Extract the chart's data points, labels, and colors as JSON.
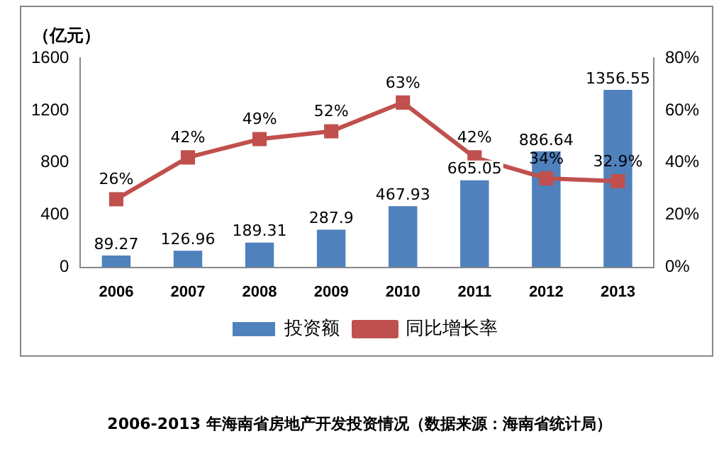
{
  "chart_data": {
    "type": "bar",
    "ylabel": "（亿元）",
    "categories": [
      "2006",
      "2007",
      "2008",
      "2009",
      "2010",
      "2011",
      "2012",
      "2013"
    ],
    "series": [
      {
        "name": "投资额",
        "color": "#4f81bd",
        "values": [
          89.27,
          126.96,
          189.31,
          287.9,
          467.93,
          665.05,
          886.64,
          1356.55
        ],
        "value_labels": [
          "89.27",
          "126.96",
          "189.31",
          "287.9",
          "467.93",
          "665.05",
          "886.64",
          "1356.55"
        ]
      },
      {
        "name": "同比增长率",
        "type": "line",
        "axis": "y2",
        "color": "#c0504d",
        "values": [
          26,
          42,
          49,
          52,
          63,
          42,
          34,
          32.9
        ],
        "value_labels": [
          "26%",
          "42%",
          "49%",
          "52%",
          "63%",
          "42%",
          "34%",
          "32.9%"
        ]
      }
    ],
    "ylim": [
      0,
      1600
    ],
    "yticks": [
      0,
      400,
      800,
      1200,
      1600
    ],
    "y2lim": [
      0,
      80
    ],
    "y2ticks": [
      {
        "value": 0,
        "label": "0%"
      },
      {
        "value": 20,
        "label": "20%"
      },
      {
        "value": 40,
        "label": "40%"
      },
      {
        "value": 60,
        "label": "60%"
      },
      {
        "value": 80,
        "label": "80%"
      }
    ],
    "marker": "square",
    "legend": "bottom",
    "grid": false,
    "annotations": [
      "2006-2013 年海南省房地产开发投资情况（数据来源：海南省统计局）"
    ]
  }
}
